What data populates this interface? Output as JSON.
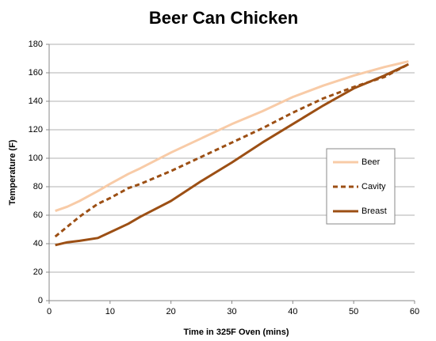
{
  "chart_data": {
    "type": "line",
    "title": "Beer Can Chicken",
    "x_label": "Time in 325F Oven (mins)",
    "y_label": "Temperature (F)",
    "x": [
      1,
      3,
      5,
      8,
      10,
      13,
      15,
      20,
      25,
      30,
      35,
      40,
      45,
      50,
      55,
      59
    ],
    "series": [
      {
        "name": "Beer",
        "color": "#f8cba7",
        "dashed": false,
        "values": [
          63,
          66,
          70,
          77,
          82,
          89,
          93,
          104,
          114,
          124,
          133,
          143,
          151,
          158,
          164,
          168
        ]
      },
      {
        "name": "Cavity",
        "color": "#9c4f14",
        "dashed": true,
        "values": [
          45,
          52,
          59,
          68,
          72,
          79,
          82,
          91,
          101,
          111,
          121,
          132,
          142,
          150,
          157,
          166
        ]
      },
      {
        "name": "Breast",
        "color": "#9c4f14",
        "dashed": false,
        "values": [
          39,
          41,
          42,
          44,
          48,
          54,
          59,
          70,
          84,
          97,
          111,
          124,
          137,
          149,
          158,
          166
        ]
      }
    ],
    "xlim": [
      0,
      60
    ],
    "ylim": [
      0,
      180
    ],
    "xticks": [
      0,
      10,
      20,
      30,
      40,
      50,
      60
    ],
    "yticks": [
      0,
      20,
      40,
      60,
      80,
      100,
      120,
      140,
      160,
      180
    ],
    "grid": true,
    "legend": "right"
  }
}
